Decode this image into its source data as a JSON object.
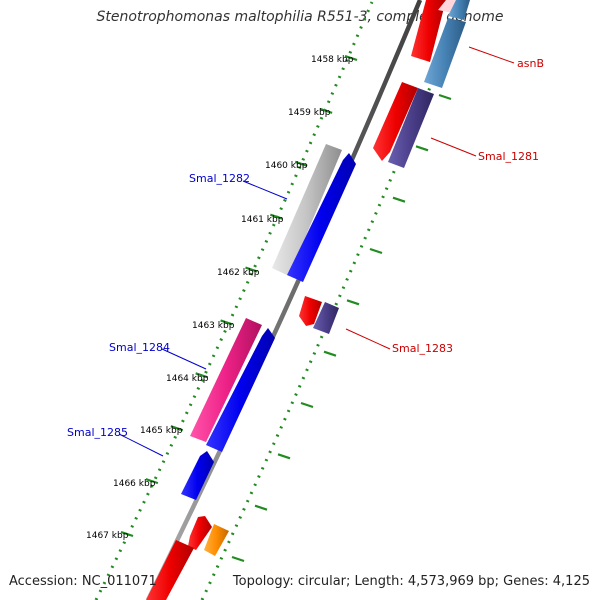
{
  "title": "Stenotrophomonas maltophilia R551-3, complete genome",
  "footer": {
    "accession": "Accession: NC_011071",
    "summary": "Topology: circular; Length: 4,573,969 bp; Genes: 4,125"
  },
  "scale_ticks": [
    {
      "kbp": 1458,
      "label": "1458 kbp"
    },
    {
      "kbp": 1459,
      "label": "1459 kbp"
    },
    {
      "kbp": 1460,
      "label": "1460 kbp"
    },
    {
      "kbp": 1461,
      "label": "1461 kbp"
    },
    {
      "kbp": 1462,
      "label": "1462 kbp"
    },
    {
      "kbp": 1463,
      "label": "1463 kbp"
    },
    {
      "kbp": 1464,
      "label": "1464 kbp"
    },
    {
      "kbp": 1465,
      "label": "1465 kbp"
    },
    {
      "kbp": 1466,
      "label": "1466 kbp"
    },
    {
      "kbp": 1467,
      "label": "1467 kbp"
    }
  ],
  "gene_labels": [
    {
      "label": "asnB",
      "color": "#cc0000"
    },
    {
      "label": "Smal_1281",
      "color": "#cc0000"
    },
    {
      "label": "Smal_1282",
      "color": "#0000cc"
    },
    {
      "label": "Smal_1283",
      "color": "#cc0000"
    },
    {
      "label": "Smal_1284",
      "color": "#0000cc"
    },
    {
      "label": "Smal_1285",
      "color": "#0000cc"
    }
  ],
  "colors": {
    "backbone": "#808080",
    "dotted_ring": "#228b22",
    "forward_cds": "#0000ee",
    "reverse_cds": "#ee0000",
    "cds_gray": "#bbbbbb",
    "cds_pink": "#ee2288",
    "cds_purple": "#4b3f8a",
    "cds_steelblue": "#4682b4",
    "cds_orange": "#ff8c00"
  }
}
